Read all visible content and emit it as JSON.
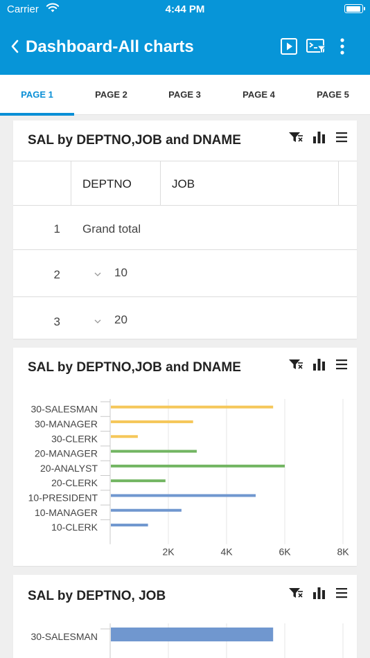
{
  "status": {
    "carrier": "Carrier",
    "time": "4:44 PM"
  },
  "nav": {
    "title": "Dashboard-All charts"
  },
  "tabs": [
    {
      "label": "PAGE 1",
      "active": true
    },
    {
      "label": "PAGE 2",
      "active": false
    },
    {
      "label": "PAGE 3",
      "active": false
    },
    {
      "label": "PAGE 4",
      "active": false
    },
    {
      "label": "PAGE 5",
      "active": false
    }
  ],
  "cards": {
    "table_card": {
      "title": "SAL by DEPTNO,JOB and DNAME",
      "columns": [
        "DEPTNO",
        "JOB"
      ],
      "rows": [
        {
          "num": "1",
          "value": "Grand total"
        },
        {
          "num": "2",
          "value": "10"
        },
        {
          "num": "3",
          "value": "20"
        }
      ]
    },
    "bar_card": {
      "title": "SAL by DEPTNO,JOB and DNAME"
    },
    "bar_card2": {
      "title": "SAL by DEPTNO, JOB"
    }
  },
  "colors": {
    "accent": "#0795d8",
    "yellow": "#f5c75a",
    "green": "#72b562",
    "blue": "#7097cf"
  },
  "chart_data": [
    {
      "type": "bar",
      "orientation": "horizontal",
      "categories": [
        "30-SALESMAN",
        "30-MANAGER",
        "30-CLERK",
        "20-MANAGER",
        "20-ANALYST",
        "20-CLERK",
        "10-PRESIDENT",
        "10-MANAGER",
        "10-CLERK"
      ],
      "values": [
        5600,
        2850,
        950,
        2975,
        6000,
        1900,
        5000,
        2450,
        1300
      ],
      "bar_colors": [
        "yellow",
        "yellow",
        "yellow",
        "green",
        "green",
        "green",
        "blue",
        "blue",
        "blue"
      ],
      "xticks": [
        "2K",
        "4K",
        "6K",
        "8K"
      ],
      "xlim": [
        0,
        8000
      ],
      "grid": true
    },
    {
      "type": "bar",
      "orientation": "horizontal",
      "categories": [
        "30-SALESMAN"
      ],
      "values": [
        5600
      ],
      "bar_colors": [
        "blue"
      ],
      "xlim": [
        0,
        8000
      ],
      "grid": true
    }
  ]
}
